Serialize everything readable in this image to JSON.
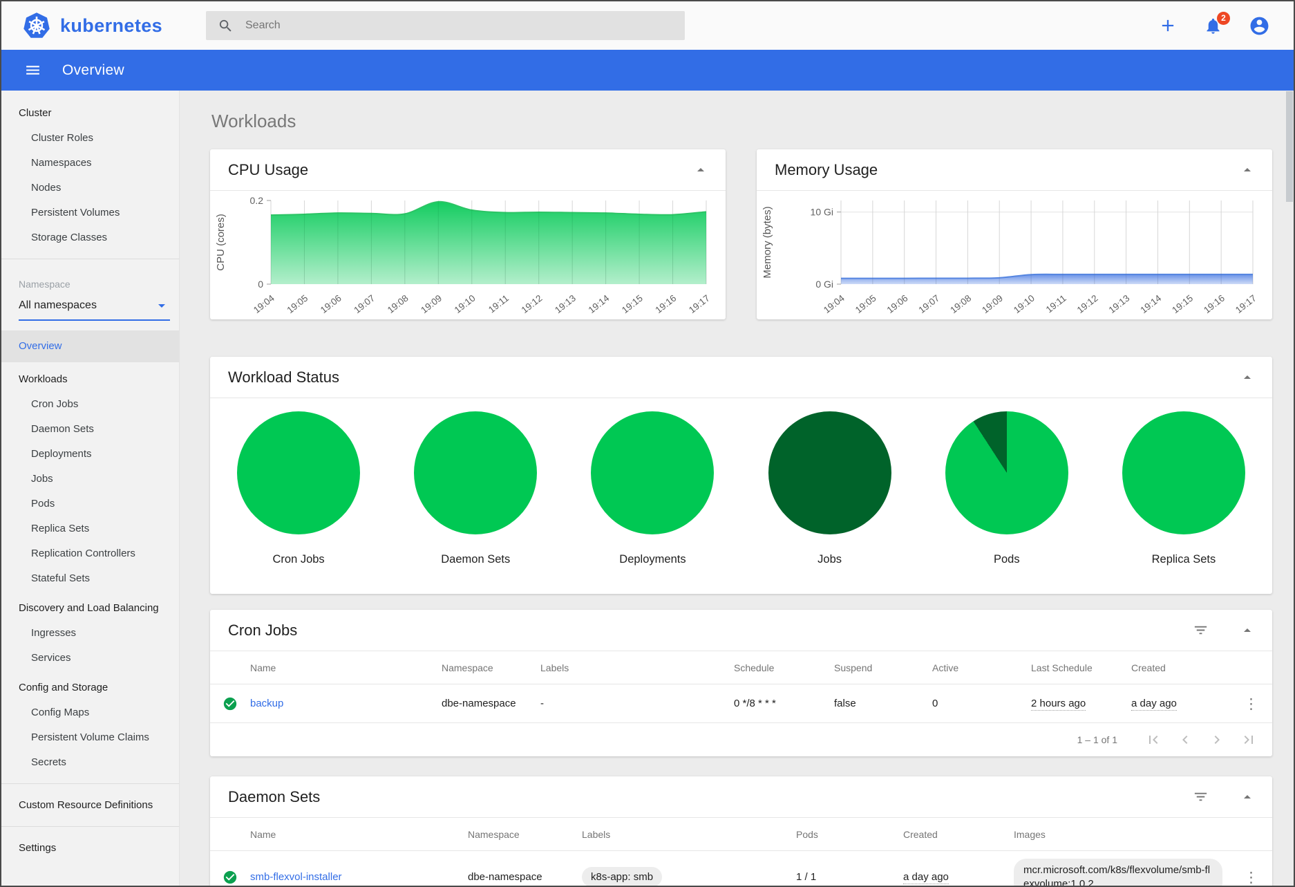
{
  "header": {
    "brand": "kubernetes",
    "search_placeholder": "Search",
    "notification_count": "2"
  },
  "toolbar": {
    "title": "Overview"
  },
  "icons": {
    "kebab": "⋮"
  },
  "sidebar": {
    "sections": [
      {
        "type": "group",
        "header": "Cluster",
        "items": [
          "Cluster Roles",
          "Namespaces",
          "Nodes",
          "Persistent Volumes",
          "Storage Classes"
        ]
      },
      {
        "type": "divider"
      },
      {
        "type": "namespace",
        "label": "Namespace",
        "selected": "All namespaces"
      },
      {
        "type": "single",
        "label": "Overview",
        "active": true
      },
      {
        "type": "group",
        "header": "Workloads",
        "items": [
          "Cron Jobs",
          "Daemon Sets",
          "Deployments",
          "Jobs",
          "Pods",
          "Replica Sets",
          "Replication Controllers",
          "Stateful Sets"
        ]
      },
      {
        "type": "group",
        "header": "Discovery and Load Balancing",
        "items": [
          "Ingresses",
          "Services"
        ]
      },
      {
        "type": "group",
        "header": "Config and Storage",
        "items": [
          "Config Maps",
          "Persistent Volume Claims",
          "Secrets"
        ]
      },
      {
        "type": "divider"
      },
      {
        "type": "single",
        "label": "Custom Resource Definitions"
      },
      {
        "type": "divider"
      },
      {
        "type": "single",
        "label": "Settings"
      }
    ]
  },
  "page": {
    "title": "Workloads"
  },
  "chart_data": [
    {
      "type": "area",
      "title": "CPU Usage",
      "ylabel": "CPU (cores)",
      "x": [
        "19:04",
        "19:05",
        "19:06",
        "19:07",
        "19:08",
        "19:09",
        "19:10",
        "19:11",
        "19:12",
        "19:13",
        "19:14",
        "19:15",
        "19:16",
        "19:17"
      ],
      "values": [
        0.165,
        0.167,
        0.17,
        0.169,
        0.168,
        0.197,
        0.177,
        0.171,
        0.172,
        0.171,
        0.17,
        0.167,
        0.166,
        0.173
      ],
      "ylim": [
        0,
        0.2
      ],
      "yticks": [
        {
          "label": "0.2",
          "value": 0.2
        },
        {
          "label": "0",
          "value": 0
        }
      ],
      "hgrid": [],
      "color": "#00c853",
      "line_color": "#2cc465",
      "grid": true,
      "legend": "none"
    },
    {
      "type": "area",
      "title": "Memory Usage",
      "ylabel": "Memory (bytes)",
      "x": [
        "19:04",
        "19:05",
        "19:06",
        "19:07",
        "19:08",
        "19:09",
        "19:10",
        "19:11",
        "19:12",
        "19:13",
        "19:14",
        "19:15",
        "19:16",
        "19:17"
      ],
      "values": [
        0.8,
        0.8,
        0.8,
        0.82,
        0.82,
        0.88,
        1.32,
        1.35,
        1.35,
        1.35,
        1.35,
        1.35,
        1.35,
        1.35
      ],
      "values_unit": "Gi",
      "ylim": [
        0,
        11.6
      ],
      "yticks": [
        {
          "label": "10 Gi",
          "value": 10
        },
        {
          "label": "0 Gi",
          "value": 0
        }
      ],
      "hgrid": [
        10
      ],
      "color": "#5b87e5",
      "line_color": "#5585e0",
      "grid": true,
      "legend": "none"
    },
    {
      "type": "pie-set",
      "title": "Workload Status",
      "colors": {
        "running_green": "#00c853",
        "dark_green": "#00632a"
      },
      "pies": [
        {
          "label": "Cron Jobs",
          "segments": [
            {
              "color": "#00c853",
              "from_deg": 0,
              "to_deg": 360
            }
          ]
        },
        {
          "label": "Daemon Sets",
          "segments": [
            {
              "color": "#00c853",
              "from_deg": 0,
              "to_deg": 360
            }
          ]
        },
        {
          "label": "Deployments",
          "segments": [
            {
              "color": "#00c853",
              "from_deg": 0,
              "to_deg": 360
            }
          ]
        },
        {
          "label": "Jobs",
          "segments": [
            {
              "color": "#00632a",
              "from_deg": 0,
              "to_deg": 360
            }
          ]
        },
        {
          "label": "Pods",
          "segments": [
            {
              "color": "#00c853",
              "from_deg": 0,
              "to_deg": 327
            },
            {
              "color": "#00632a",
              "from_deg": 327,
              "to_deg": 360
            }
          ]
        },
        {
          "label": "Replica Sets",
          "segments": [
            {
              "color": "#00c853",
              "from_deg": 0,
              "to_deg": 360
            }
          ]
        }
      ]
    }
  ],
  "cron_jobs": {
    "title": "Cron Jobs",
    "columns": [
      "Name",
      "Namespace",
      "Labels",
      "Schedule",
      "Suspend",
      "Active",
      "Last Schedule",
      "Created"
    ],
    "rows": [
      {
        "status": "ok",
        "name": "backup",
        "namespace": "dbe-namespace",
        "labels": "-",
        "schedule": "0 */8 * * *",
        "suspend": "false",
        "active": "0",
        "last_schedule": "2 hours ago",
        "created": "a day ago"
      }
    ],
    "pagination": {
      "range_label": "1 – 1 of 1"
    }
  },
  "daemon_sets": {
    "title": "Daemon Sets",
    "columns": [
      "Name",
      "Namespace",
      "Labels",
      "Pods",
      "Created",
      "Images"
    ],
    "rows": [
      {
        "status": "ok",
        "name": "smb-flexvol-installer",
        "namespace": "dbe-namespace",
        "labels": "k8s-app: smb",
        "pods": "1 / 1",
        "created": "a day ago",
        "images": "mcr.microsoft.com/k8s/flexvolume/smb-flexvolume:1.0.2"
      }
    ]
  }
}
